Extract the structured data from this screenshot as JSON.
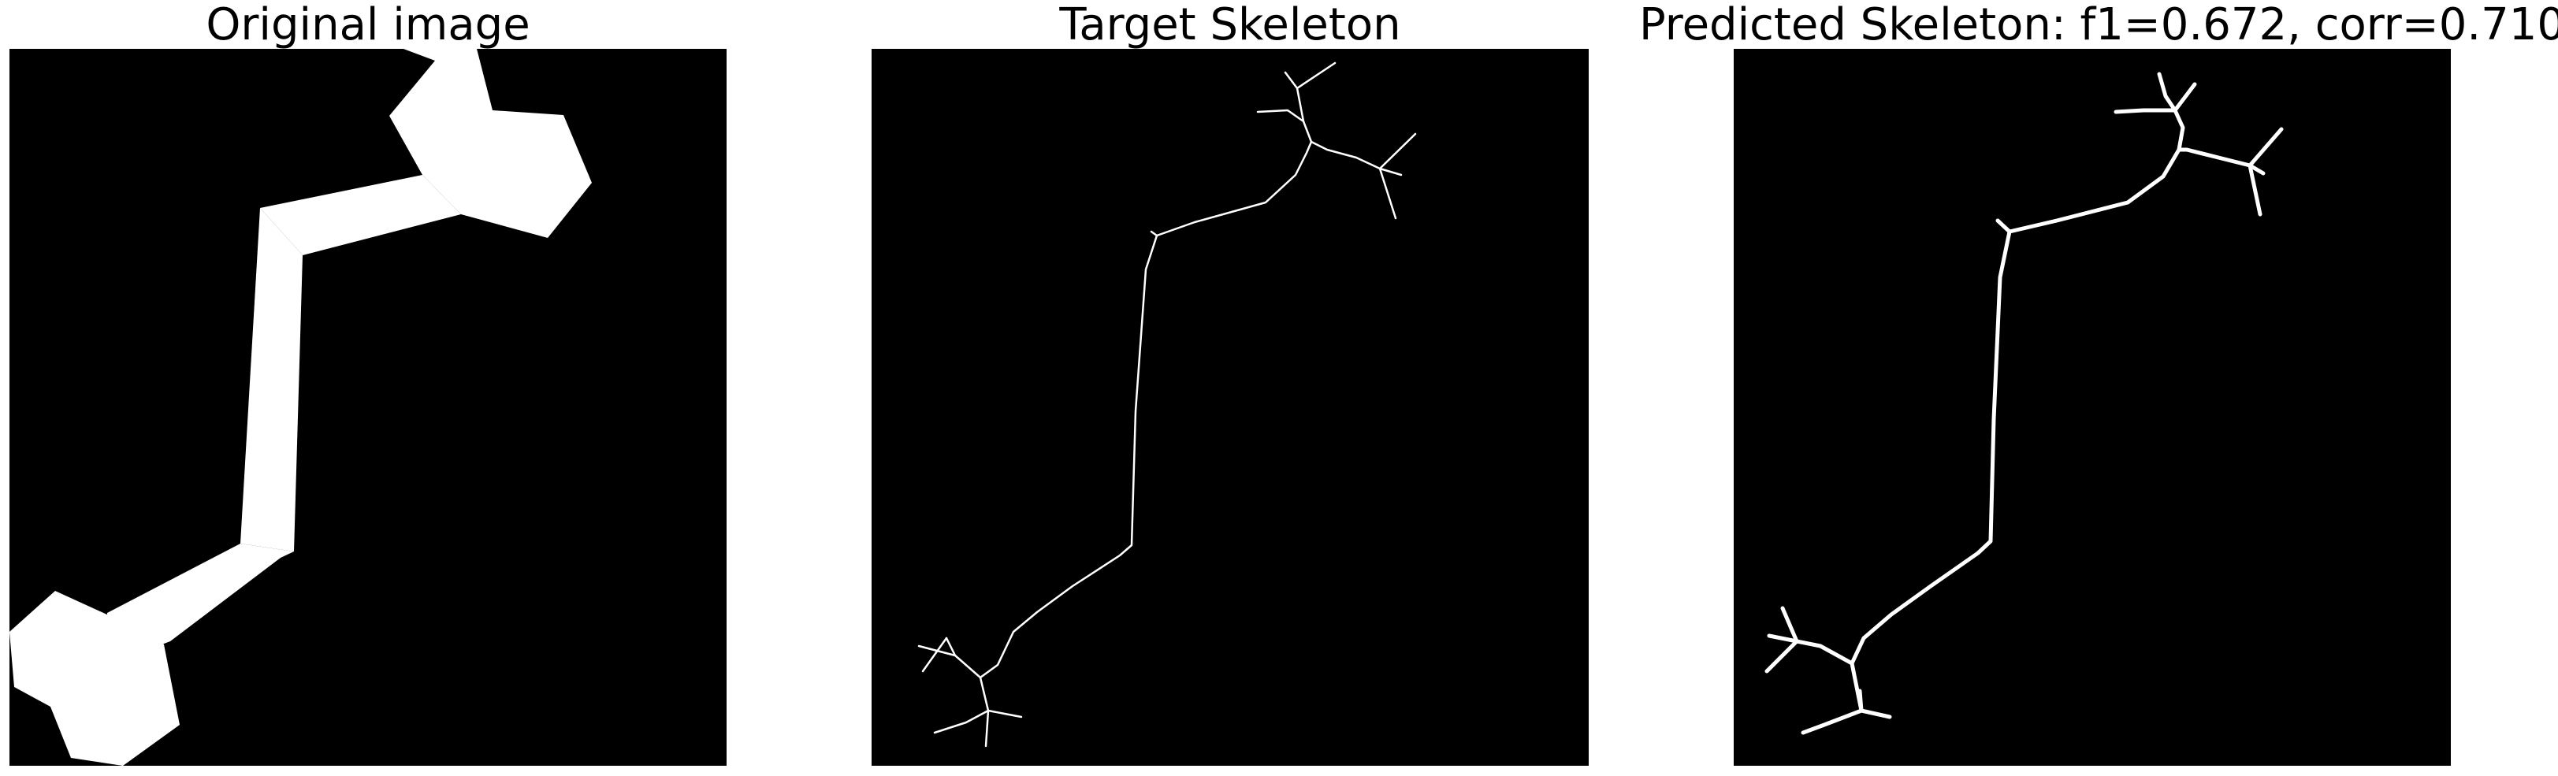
{
  "panels": [
    {
      "id": "original",
      "title": "Original image"
    },
    {
      "id": "target",
      "title": "Target Skeleton"
    },
    {
      "id": "predicted",
      "title": "Predicted Skeleton: f1=0.672, corr=0.710"
    }
  ],
  "colors": {
    "background": "#ffffff",
    "image_background": "#000000",
    "foreground": "#ffffff",
    "title_text": "#000000"
  }
}
